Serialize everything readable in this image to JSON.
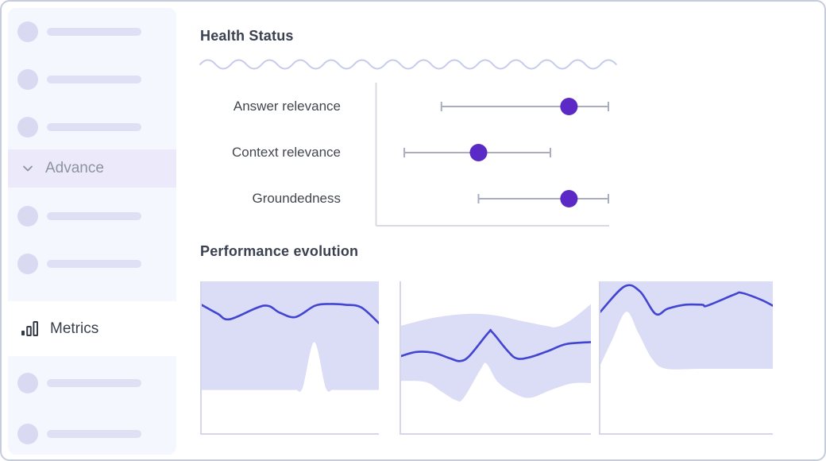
{
  "sidebar": {
    "advance_label": "Advance",
    "metrics_label": "Metrics"
  },
  "main": {
    "health_title": "Health Status",
    "performance_title": "Performance evolution"
  },
  "colors": {
    "accent_purple": "#5b2ac6",
    "line_blue": "#4245d0",
    "band_fill": "#dbdcf6",
    "whisker_gray": "#a9aebf",
    "axis_gray": "#d8dae3",
    "wave_lavender": "#c5cbec"
  },
  "chart_data": [
    {
      "type": "dot-range",
      "title": "Health Status",
      "xlim": [
        0,
        1
      ],
      "grid": false,
      "categories": [
        "Answer relevance",
        "Context relevance",
        "Groundedness"
      ],
      "rows": [
        {
          "label": "Answer relevance",
          "value": 0.83,
          "low": 0.28,
          "high": 1.0
        },
        {
          "label": "Context relevance",
          "value": 0.44,
          "low": 0.12,
          "high": 0.75
        },
        {
          "label": "Groundedness",
          "value": 0.83,
          "low": 0.44,
          "high": 1.0
        }
      ]
    },
    {
      "type": "area",
      "title": "Performance evolution - panel 1",
      "ylim": [
        0,
        1
      ],
      "line": [
        [
          0,
          0.845
        ],
        [
          9,
          0.787
        ],
        [
          16,
          0.751
        ],
        [
          35,
          0.84
        ],
        [
          44,
          0.794
        ],
        [
          53,
          0.765
        ],
        [
          64,
          0.84
        ],
        [
          73,
          0.851
        ],
        [
          81,
          0.846
        ],
        [
          90,
          0.829
        ],
        [
          100,
          0.725
        ]
      ],
      "band_upper": [
        [
          0,
          1
        ],
        [
          100,
          1
        ]
      ],
      "band_lower": [
        [
          0,
          0.285
        ],
        [
          48,
          0.285
        ],
        [
          53,
          0.286
        ],
        [
          57,
          0.3
        ],
        [
          63.5,
          0.6
        ],
        [
          70,
          0.3
        ],
        [
          74,
          0.286
        ],
        [
          79,
          0.285
        ],
        [
          100,
          0.285
        ]
      ]
    },
    {
      "type": "area",
      "title": "Performance evolution - panel 2",
      "ylim": [
        0,
        1
      ],
      "line": [
        [
          0,
          0.508
        ],
        [
          8,
          0.535
        ],
        [
          17,
          0.53
        ],
        [
          26,
          0.492
        ],
        [
          31,
          0.475
        ],
        [
          36,
          0.509
        ],
        [
          46,
          0.662
        ],
        [
          48,
          0.665
        ],
        [
          56,
          0.544
        ],
        [
          61,
          0.492
        ],
        [
          68,
          0.501
        ],
        [
          78,
          0.544
        ],
        [
          87,
          0.587
        ],
        [
          100,
          0.6
        ]
      ],
      "band_upper": [
        [
          0,
          0.708
        ],
        [
          17,
          0.76
        ],
        [
          35,
          0.786
        ],
        [
          49,
          0.777
        ],
        [
          62,
          0.743
        ],
        [
          76,
          0.708
        ],
        [
          82,
          0.7
        ],
        [
          90,
          0.75
        ],
        [
          100,
          0.85
        ]
      ],
      "band_lower": [
        [
          0,
          0.345
        ],
        [
          13,
          0.337
        ],
        [
          21,
          0.276
        ],
        [
          29,
          0.216
        ],
        [
          33,
          0.233
        ],
        [
          42,
          0.423
        ],
        [
          45,
          0.458
        ],
        [
          51,
          0.337
        ],
        [
          60,
          0.26
        ],
        [
          68,
          0.233
        ],
        [
          79,
          0.285
        ],
        [
          90,
          0.328
        ],
        [
          100,
          0.33
        ]
      ]
    },
    {
      "type": "area",
      "title": "Performance evolution - panel 3",
      "ylim": [
        0,
        1
      ],
      "line": [
        [
          0,
          0.8
        ],
        [
          14,
          0.967
        ],
        [
          23,
          0.933
        ],
        [
          32,
          0.786
        ],
        [
          39,
          0.82
        ],
        [
          49,
          0.846
        ],
        [
          59,
          0.846
        ],
        [
          62,
          0.84
        ],
        [
          78,
          0.915
        ],
        [
          82,
          0.924
        ],
        [
          93,
          0.88
        ],
        [
          100,
          0.84
        ]
      ],
      "band_upper": [
        [
          0,
          1
        ],
        [
          100,
          1
        ]
      ],
      "band_lower": [
        [
          0,
          0.45
        ],
        [
          7,
          0.62
        ],
        [
          15,
          0.8
        ],
        [
          22,
          0.66
        ],
        [
          30,
          0.49
        ],
        [
          38,
          0.425
        ],
        [
          60,
          0.424
        ],
        [
          100,
          0.424
        ]
      ]
    }
  ]
}
